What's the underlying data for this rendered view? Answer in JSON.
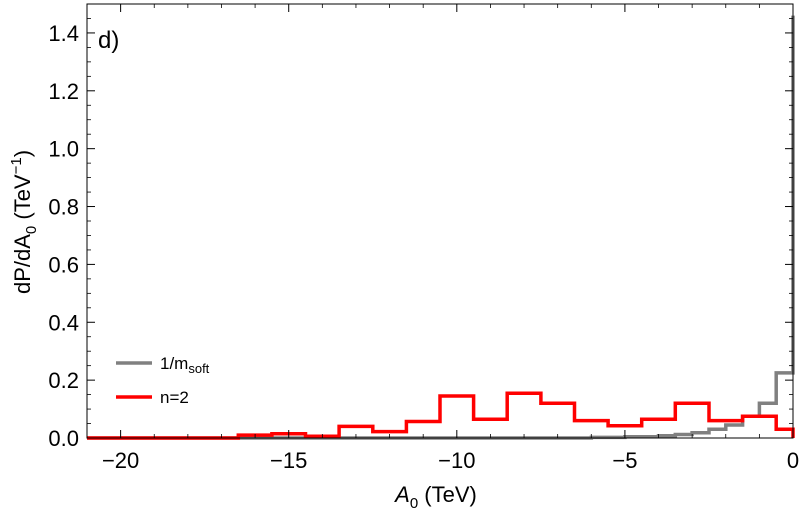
{
  "chart_data": {
    "type": "line",
    "step": true,
    "panel_label": "d)",
    "xlabel": "A",
    "xlabel_sub": "0",
    "xlabel_unit": " (TeV)",
    "ylabel": "dP/dA",
    "ylabel_sub": "0",
    "ylabel_unit_open": " (TeV",
    "ylabel_sup": "−1",
    "ylabel_unit_close": ")",
    "xlim": [
      -21,
      0
    ],
    "ylim": [
      0,
      1.5
    ],
    "xticks": [
      -20,
      -15,
      -10,
      -5,
      0
    ],
    "xtick_labels": [
      "−20",
      "−15",
      "−10",
      "−5",
      "0"
    ],
    "yticks": [
      0.0,
      0.2,
      0.4,
      0.6,
      0.8,
      1.0,
      1.2,
      1.4
    ],
    "ytick_labels": [
      "0.0",
      "0.2",
      "0.4",
      "0.6",
      "0.8",
      "1.0",
      "1.2",
      "1.4"
    ],
    "legend_position": "bottom-left",
    "series": [
      {
        "name": "1/m",
        "name_sub": "soft",
        "color": "#808080",
        "edges": [
          -21,
          -6,
          -5,
          -4,
          -3.5,
          -3,
          -2.5,
          -2,
          -1.5,
          -1,
          -0.5,
          0
        ],
        "values": [
          0,
          0.002,
          0.004,
          0.008,
          0.012,
          0.018,
          0.03,
          0.045,
          0.075,
          0.12,
          0.225,
          1.46
        ]
      },
      {
        "name": "n=2",
        "color": "#ff0000",
        "edges": [
          -21,
          -16.5,
          -15.5,
          -14.5,
          -13.5,
          -12.5,
          -11.5,
          -10.5,
          -9.5,
          -8.5,
          -7.5,
          -6.5,
          -5.5,
          -4.5,
          -3.5,
          -2.5,
          -1.5,
          -0.5,
          0
        ],
        "values": [
          0,
          0.01,
          0.015,
          0.006,
          0.04,
          0.022,
          0.057,
          0.145,
          0.065,
          0.155,
          0.12,
          0.06,
          0.042,
          0.065,
          0.12,
          0.06,
          0.075,
          0.03,
          0
        ]
      }
    ]
  }
}
